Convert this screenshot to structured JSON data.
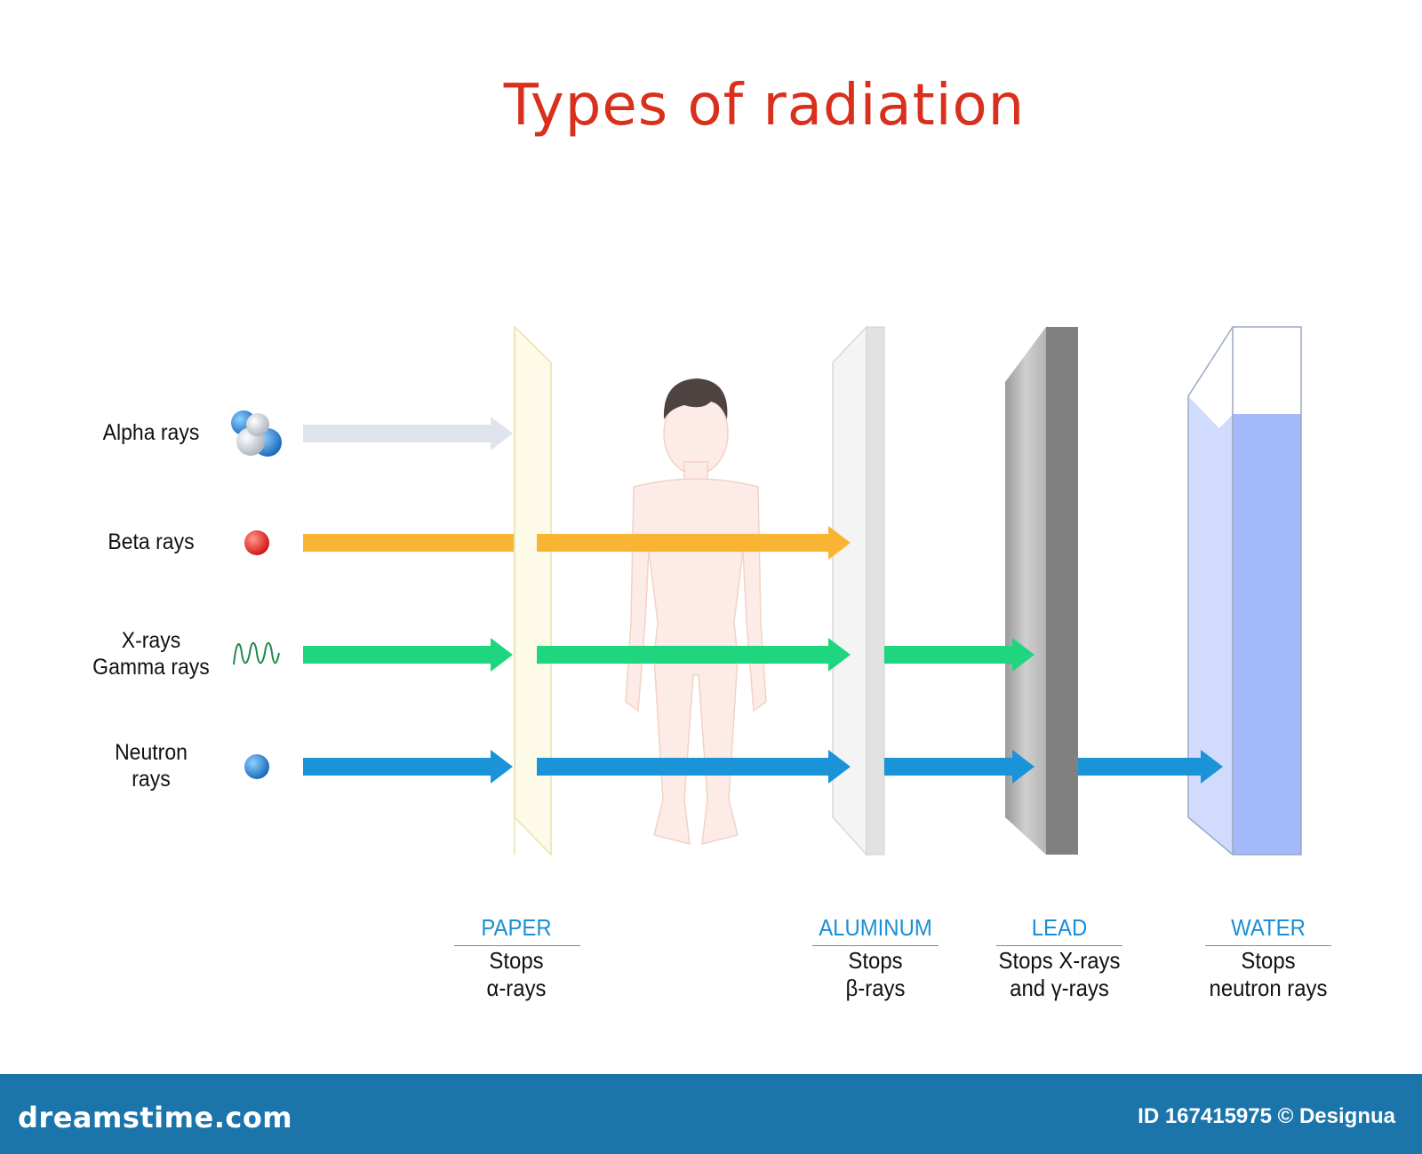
{
  "title": "Types of radiation",
  "rays": [
    {
      "id": "alpha",
      "label": "Alpha rays",
      "color": "#dfe3ec"
    },
    {
      "id": "beta",
      "label": "Beta rays",
      "color": "#f9b433"
    },
    {
      "id": "xgamma",
      "label": "X-rays\nGamma rays",
      "color": "#1fd67e"
    },
    {
      "id": "neutron",
      "label": "Neutron\nrays",
      "color": "#1a93d8"
    }
  ],
  "materials": [
    {
      "id": "paper",
      "name": "PAPER",
      "desc": "Stops\nα-rays"
    },
    {
      "id": "aluminum",
      "name": "ALUMINUM",
      "desc": "Stops\nβ-rays"
    },
    {
      "id": "lead",
      "name": "LEAD",
      "desc": "Stops X-rays\nand γ-rays"
    },
    {
      "id": "water",
      "name": "WATER",
      "desc": "Stops\nneutron rays"
    }
  ],
  "colors": {
    "title": "#d8301c",
    "material_label": "#1b8fd6",
    "water": "#a4b9fa",
    "lead": "#808080",
    "paper": "#fdfbe8",
    "body": "#fcebe6",
    "footer": "#1b75ab"
  },
  "icons": {
    "alpha": "alpha-particle-cluster-icon",
    "beta": "electron-sphere-icon",
    "xgamma": "electromagnetic-wave-icon",
    "neutron": "neutron-sphere-icon"
  },
  "footer": {
    "brand": "dreamstime.com",
    "id_text": "ID 167415975 © Designua"
  }
}
